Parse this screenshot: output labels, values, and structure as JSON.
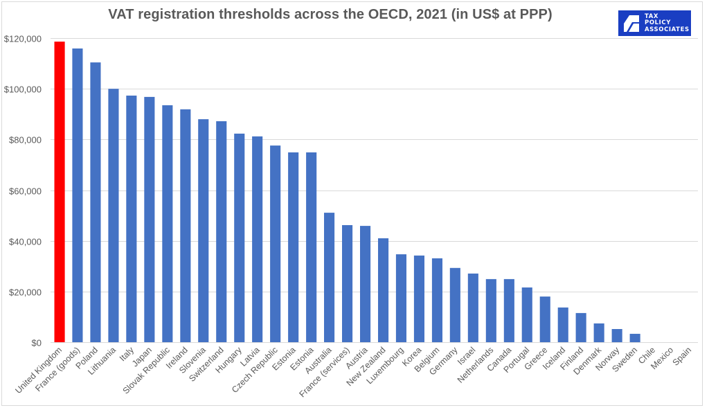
{
  "logo": {
    "lines": [
      "TAX",
      "POLICY",
      "ASSOCIATES"
    ],
    "background": "#1a3ec2",
    "icon": "tax-policy-associates-logo-icon"
  },
  "chart_data": {
    "type": "bar",
    "title": "VAT registration thresholds across the OECD, 2021 (in US$ at PPP)",
    "xlabel": "",
    "ylabel": "",
    "ylim": [
      0,
      120000
    ],
    "yticks": [
      0,
      20000,
      40000,
      60000,
      80000,
      100000,
      120000
    ],
    "ytick_labels": [
      "$0",
      "$20,000",
      "$40,000",
      "$60,000",
      "$80,000",
      "$100,000",
      "$120,000"
    ],
    "grid": true,
    "legend": "none",
    "colors": {
      "default": "#4472c4",
      "highlight": "#ff0000"
    },
    "highlight": [
      "United Kingdom"
    ],
    "categories": [
      "United Kingdom",
      "France (goods)",
      "Poland",
      "Lithuania",
      "Italy",
      "Japan",
      "Slovak Republic",
      "Ireland",
      "Slovenia",
      "Switzerland",
      "Hungary",
      "Latvia",
      "Czech Republic",
      "Estonia",
      "Estonia",
      "Australia",
      "France (services)",
      "Austria",
      "New Zealand",
      "Luxembourg",
      "Korea",
      "Belgium",
      "Germany",
      "Israel",
      "Netherlands",
      "Canada",
      "Portugal",
      "Greece",
      "Iceland",
      "Finland",
      "Denmark",
      "Norway",
      "Sweden",
      "Chile",
      "Mexico",
      "Spain"
    ],
    "values": [
      118600,
      115900,
      110400,
      100000,
      97300,
      96800,
      93500,
      91900,
      88000,
      87200,
      82300,
      81200,
      77600,
      74900,
      74900,
      51100,
      46200,
      45900,
      41000,
      34700,
      34200,
      33100,
      29300,
      27100,
      24900,
      24900,
      21600,
      18000,
      13700,
      11500,
      7400,
      5200,
      3300,
      0,
      0,
      0
    ]
  }
}
